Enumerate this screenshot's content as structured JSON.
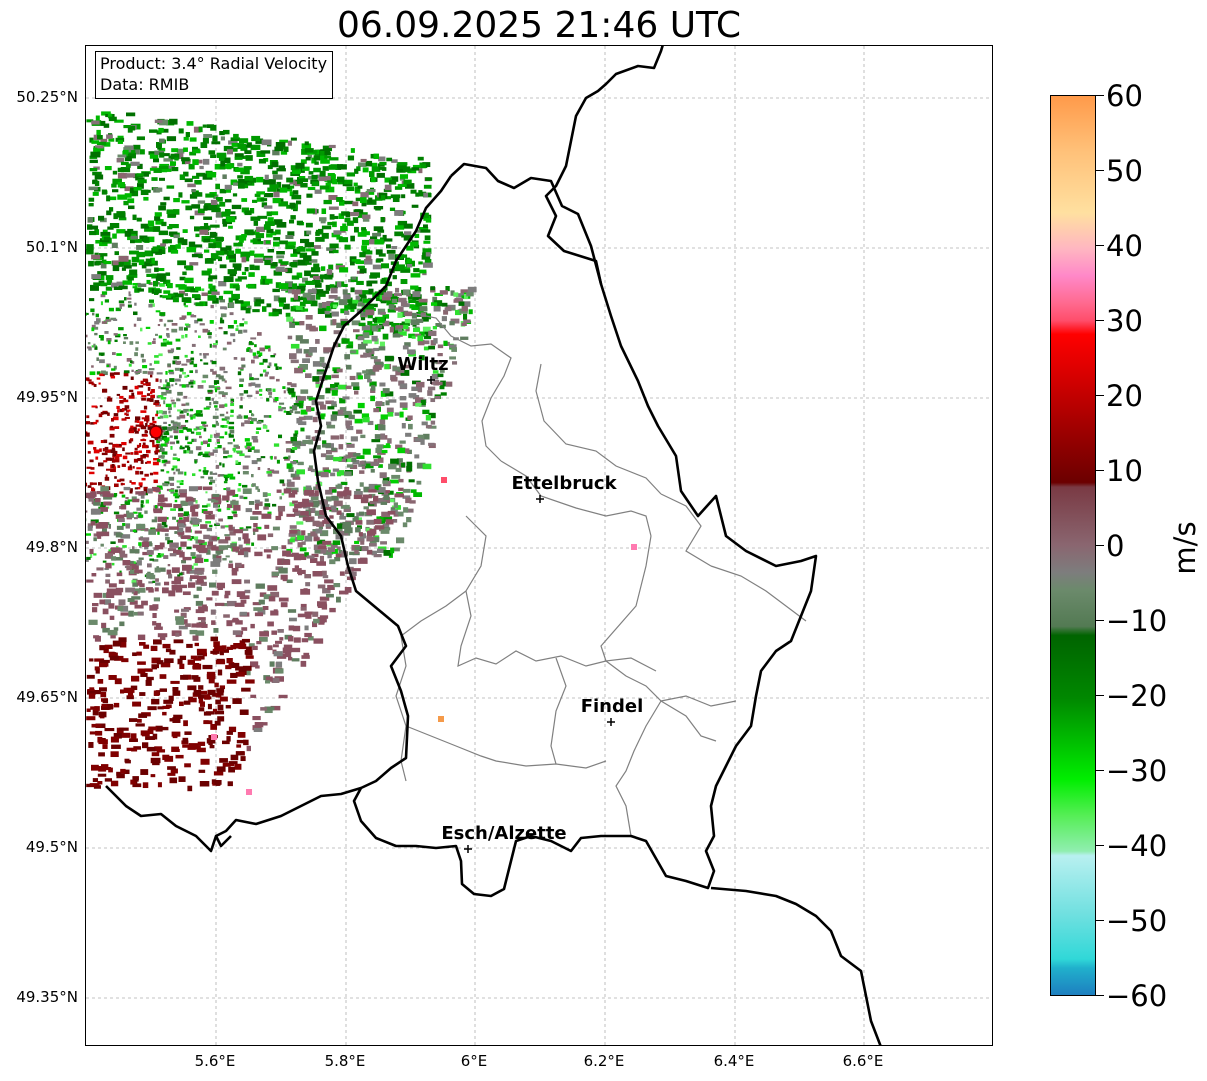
{
  "title": "06.09.2025 21:46 UTC",
  "info": {
    "product": "Product: 3.4° Radial Velocity",
    "data": "Data: RMIB"
  },
  "map": {
    "lat_ticks": [
      "50.25°N",
      "50.1°N",
      "49.95°N",
      "49.8°N",
      "49.65°N",
      "49.5°N",
      "49.35°N"
    ],
    "lon_ticks": [
      "5.6°E",
      "5.8°E",
      "6°E",
      "6.2°E",
      "6.4°E",
      "6.6°E"
    ],
    "cities": [
      {
        "name": "Wiltz"
      },
      {
        "name": "Ettelbruck"
      },
      {
        "name": "Findel"
      },
      {
        "name": "Esch/Alzette"
      }
    ],
    "radar_site_color": "#ff0000"
  },
  "colorbar": {
    "ticks": [
      "60",
      "50",
      "40",
      "30",
      "20",
      "10",
      "0",
      "−10",
      "−20",
      "−30",
      "−40",
      "−50",
      "−60"
    ],
    "label": "m/s",
    "range": [
      -60,
      60
    ]
  }
}
